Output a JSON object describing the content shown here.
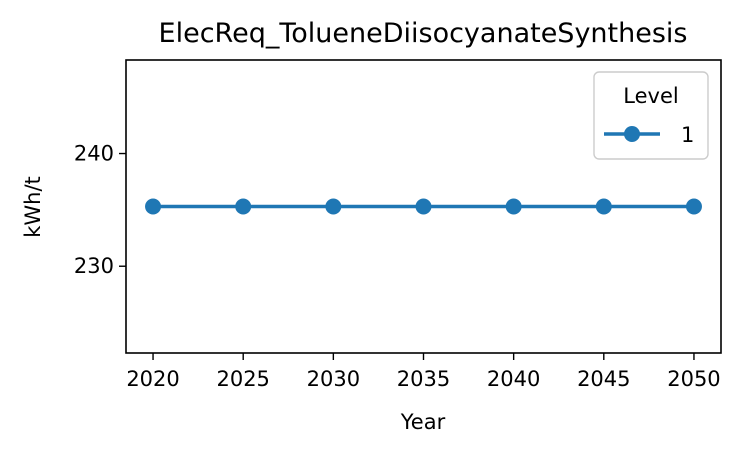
{
  "chart_data": {
    "type": "line",
    "title": "ElecReq_TolueneDiisocyanateSynthesis",
    "xlabel": "Year",
    "ylabel": "kWh/t",
    "x": [
      2020,
      2025,
      2030,
      2035,
      2040,
      2045,
      2050
    ],
    "series": [
      {
        "name": "1",
        "values": [
          235.3,
          235.3,
          235.3,
          235.3,
          235.3,
          235.3,
          235.3
        ],
        "color": "#1f77b4",
        "marker": "circle"
      }
    ],
    "xticks": [
      2020,
      2025,
      2030,
      2035,
      2040,
      2045,
      2050
    ],
    "yticks": [
      230,
      240
    ],
    "xlim": [
      2018.5,
      2051.5
    ],
    "ylim": [
      222.3,
      248.3
    ],
    "grid": false,
    "legend": {
      "title": "Level",
      "placement": "top-right"
    }
  }
}
